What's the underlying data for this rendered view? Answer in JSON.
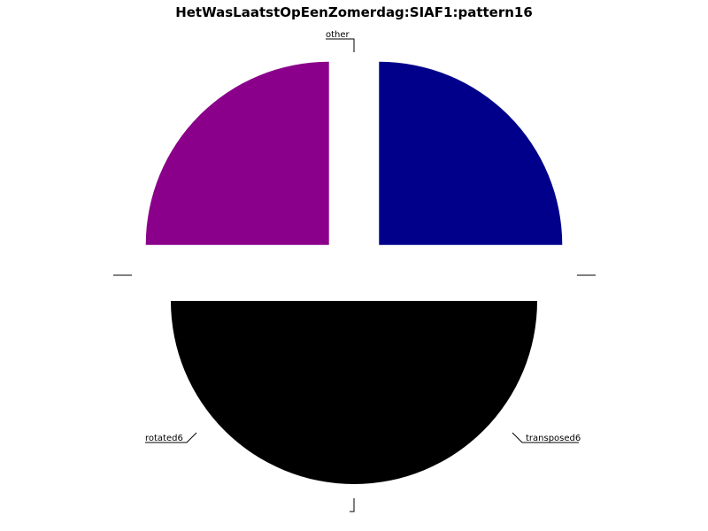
{
  "chart_data": {
    "type": "pie",
    "title": "HetWasLaatstOpEenZomerdag:SIAF1:pattern16",
    "slices": [
      {
        "label": "other",
        "value": 50,
        "color": "#000000"
      },
      {
        "label": "transposed6",
        "value": 25,
        "color": "#00008B"
      },
      {
        "label": "",
        "value": 0,
        "color": "#000000"
      },
      {
        "label": "rotated6",
        "value": 25,
        "color": "#8B008B"
      },
      {
        "label": "",
        "value": 0,
        "color": "#000000"
      }
    ]
  }
}
